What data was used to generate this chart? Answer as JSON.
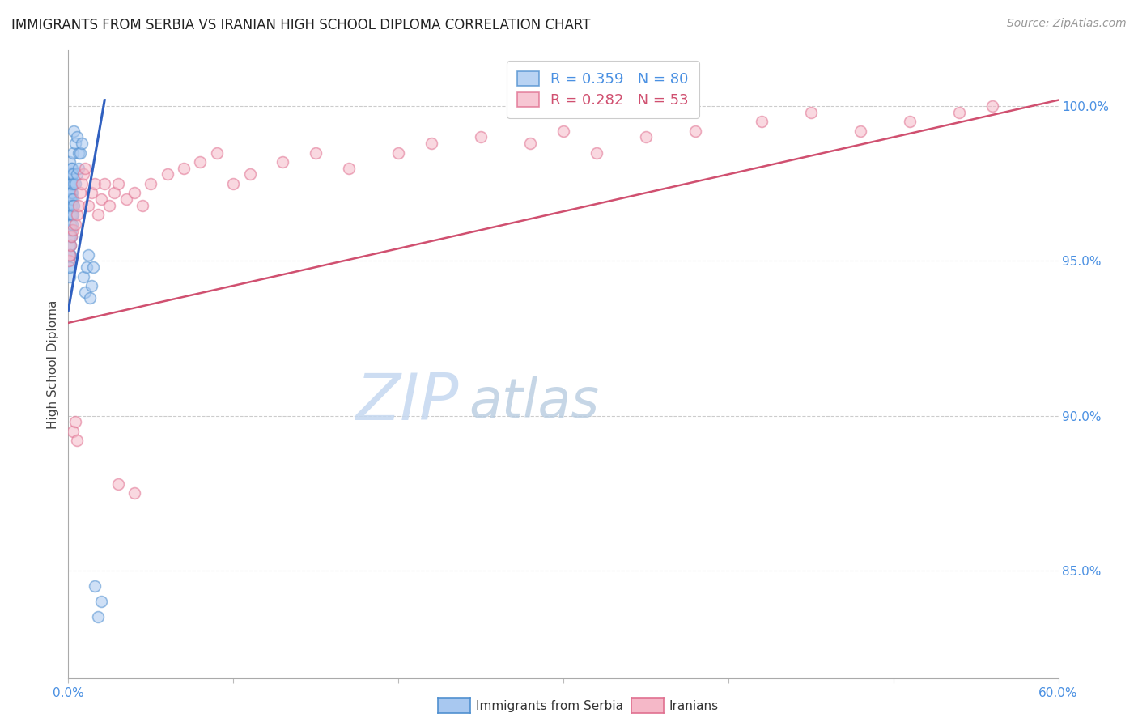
{
  "title": "IMMIGRANTS FROM SERBIA VS IRANIAN HIGH SCHOOL DIPLOMA CORRELATION CHART",
  "source": "Source: ZipAtlas.com",
  "ylabel": "High School Diploma",
  "ylabel_right_labels": [
    "100.0%",
    "95.0%",
    "90.0%",
    "85.0%"
  ],
  "ylabel_right_values": [
    1.0,
    0.95,
    0.9,
    0.85
  ],
  "legend_blue_r": "R = 0.359",
  "legend_blue_n": "N = 80",
  "legend_pink_r": "R = 0.282",
  "legend_pink_n": "N = 53",
  "blue_fill": "#a8c8f0",
  "blue_edge": "#5090d0",
  "pink_fill": "#f5b8c8",
  "pink_edge": "#e07090",
  "blue_line_color": "#3060c0",
  "pink_line_color": "#d05070",
  "legend_text_blue": "#4a90e2",
  "legend_text_pink": "#d05070",
  "title_color": "#222222",
  "source_color": "#999999",
  "axis_label_color": "#4a90e2",
  "grid_color": "#cccccc",
  "watermark_zip_color": "#ccdcf0",
  "watermark_atlas_color": "#c0d8e8",
  "serbia_x": [
    0.0002,
    0.0003,
    0.0004,
    0.0005,
    0.0005,
    0.0006,
    0.0006,
    0.0007,
    0.0007,
    0.0008,
    0.0008,
    0.0008,
    0.0009,
    0.0009,
    0.001,
    0.001,
    0.001,
    0.0011,
    0.0011,
    0.0012,
    0.0012,
    0.0012,
    0.0013,
    0.0013,
    0.0014,
    0.0014,
    0.0015,
    0.0015,
    0.0016,
    0.0016,
    0.0017,
    0.0017,
    0.0018,
    0.0019,
    0.002,
    0.002,
    0.0021,
    0.0022,
    0.0023,
    0.0025,
    0.0025,
    0.0026,
    0.0027,
    0.003,
    0.003,
    0.0032,
    0.0035,
    0.004,
    0.005,
    0.006,
    0.0003,
    0.0004,
    0.0005,
    0.0006,
    0.0007,
    0.0008,
    0.0009,
    0.001,
    0.0012,
    0.0015,
    0.0018,
    0.002,
    0.0025,
    0.003,
    0.0035,
    0.004,
    0.005,
    0.006,
    0.007,
    0.008,
    0.009,
    0.01,
    0.011,
    0.012,
    0.013,
    0.014,
    0.015,
    0.016,
    0.018,
    0.02
  ],
  "serbia_y": [
    0.97,
    0.975,
    0.968,
    0.972,
    0.965,
    0.96,
    0.978,
    0.982,
    0.958,
    0.975,
    0.968,
    0.972,
    0.965,
    0.97,
    0.96,
    0.975,
    0.968,
    0.972,
    0.965,
    0.978,
    0.97,
    0.962,
    0.968,
    0.975,
    0.965,
    0.972,
    0.97,
    0.968,
    0.978,
    0.965,
    0.972,
    0.968,
    0.975,
    0.97,
    0.98,
    0.968,
    0.975,
    0.978,
    0.972,
    0.98,
    0.965,
    0.978,
    0.97,
    0.985,
    0.968,
    0.975,
    0.992,
    0.988,
    0.99,
    0.985,
    0.95,
    0.948,
    0.955,
    0.952,
    0.958,
    0.945,
    0.952,
    0.948,
    0.955,
    0.952,
    0.958,
    0.96,
    0.962,
    0.965,
    0.968,
    0.975,
    0.978,
    0.98,
    0.985,
    0.988,
    0.945,
    0.94,
    0.948,
    0.952,
    0.938,
    0.942,
    0.948,
    0.845,
    0.835,
    0.84
  ],
  "iranian_x": [
    0.0005,
    0.001,
    0.0015,
    0.002,
    0.003,
    0.004,
    0.005,
    0.006,
    0.007,
    0.008,
    0.009,
    0.01,
    0.012,
    0.014,
    0.016,
    0.018,
    0.02,
    0.022,
    0.025,
    0.028,
    0.03,
    0.035,
    0.04,
    0.045,
    0.05,
    0.06,
    0.07,
    0.08,
    0.09,
    0.1,
    0.11,
    0.13,
    0.15,
    0.17,
    0.2,
    0.22,
    0.25,
    0.28,
    0.3,
    0.32,
    0.35,
    0.38,
    0.42,
    0.45,
    0.48,
    0.51,
    0.54,
    0.56,
    0.003,
    0.004,
    0.005,
    0.03,
    0.04
  ],
  "iranian_y": [
    0.95,
    0.952,
    0.955,
    0.958,
    0.96,
    0.962,
    0.965,
    0.968,
    0.972,
    0.975,
    0.978,
    0.98,
    0.968,
    0.972,
    0.975,
    0.965,
    0.97,
    0.975,
    0.968,
    0.972,
    0.975,
    0.97,
    0.972,
    0.968,
    0.975,
    0.978,
    0.98,
    0.982,
    0.985,
    0.975,
    0.978,
    0.982,
    0.985,
    0.98,
    0.985,
    0.988,
    0.99,
    0.988,
    0.992,
    0.985,
    0.99,
    0.992,
    0.995,
    0.998,
    0.992,
    0.995,
    0.998,
    1.0,
    0.895,
    0.898,
    0.892,
    0.878,
    0.875
  ],
  "x_min": 0.0,
  "x_max": 0.6,
  "y_min": 0.815,
  "y_max": 1.018,
  "blue_trendline_x": [
    0.0,
    0.022
  ],
  "blue_trendline_y": [
    0.934,
    1.002
  ],
  "pink_trendline_x": [
    0.0,
    0.6
  ],
  "pink_trendline_y": [
    0.93,
    1.002
  ],
  "marker_size": 100,
  "marker_alpha": 0.55,
  "marker_linewidth": 1.2
}
